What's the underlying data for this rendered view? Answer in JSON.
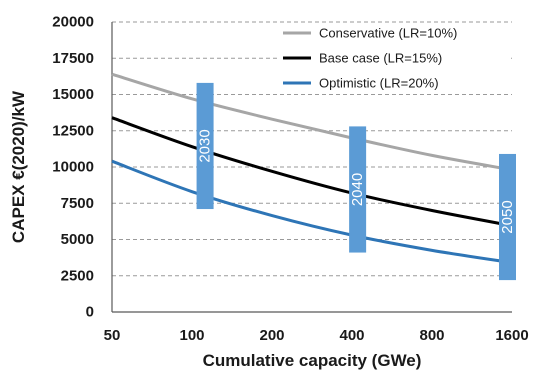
{
  "chart_data": {
    "type": "line",
    "title": "",
    "xlabel": "Cumulative capacity (GWe)",
    "ylabel": "CAPEX €(2020)/kW",
    "x_scale": "log",
    "xlim": [
      50,
      1600
    ],
    "ylim": [
      0,
      20000
    ],
    "x_ticks": [
      50,
      100,
      200,
      400,
      800,
      1600
    ],
    "x_tick_labels": [
      "50",
      "100",
      "200",
      "400",
      "800",
      "1600"
    ],
    "y_ticks": [
      0,
      2500,
      5000,
      7500,
      10000,
      12500,
      15000,
      17500,
      20000
    ],
    "y_tick_labels": [
      "0",
      "2500",
      "5000",
      "7500",
      "10000",
      "12500",
      "15000",
      "17500",
      "20000"
    ],
    "grid": {
      "horizontal": true,
      "style": "dashed"
    },
    "legend_position": "top-right",
    "series": [
      {
        "name": "Conservative (LR=10%)",
        "color": "#a6a6a6",
        "x": [
          50,
          100,
          200,
          400,
          800,
          1600
        ],
        "y": [
          16400,
          14700,
          13300,
          12000,
          10800,
          9800
        ]
      },
      {
        "name": "Base case (LR=15%)",
        "color": "#000000",
        "x": [
          50,
          100,
          200,
          400,
          800,
          1600
        ],
        "y": [
          13400,
          11400,
          9700,
          8200,
          7000,
          5950
        ]
      },
      {
        "name": "Optimistic (LR=20%)",
        "color": "#2e75b6",
        "x": [
          50,
          100,
          200,
          400,
          800,
          1600
        ],
        "y": [
          10400,
          8300,
          6650,
          5300,
          4250,
          3400
        ]
      }
    ],
    "bands": [
      {
        "label": "2030",
        "x": 112,
        "y_min": 7100,
        "y_max": 15800,
        "color": "#5b9bd5"
      },
      {
        "label": "2040",
        "x": 420,
        "y_min": 4100,
        "y_max": 12800,
        "color": "#5b9bd5"
      },
      {
        "label": "2050",
        "x": 1600,
        "y_min": 2200,
        "y_max": 10900,
        "color": "#5b9bd5"
      }
    ]
  }
}
